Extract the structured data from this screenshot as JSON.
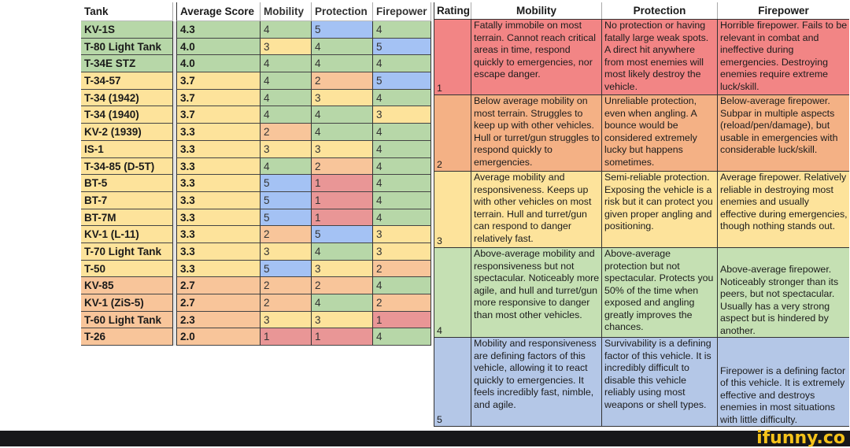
{
  "colors": {
    "rating_1": "#e99696",
    "rating_2": "#f8c59a",
    "rating_3": "#fde39b",
    "rating_4": "#b7d7a8",
    "rating_5": "#a4c2f4",
    "rt_rating_1": "#f28585",
    "rt_rating_2": "#f4b185",
    "rt_rating_3": "#fde39b",
    "rt_rating_4": "#c5e0b3",
    "rt_rating_5": "#b4c7e7"
  },
  "tank_table": {
    "headers": {
      "tank": "Tank",
      "average": "Average Score",
      "mobility": "Mobility",
      "protection": "Protection",
      "firepower": "Firepower"
    },
    "rows": [
      {
        "tank": "KV-1S",
        "average": "4.3",
        "avg_tier": 4,
        "mobility": "4",
        "protection": "5",
        "firepower": "4"
      },
      {
        "tank": "T-80 Light Tank",
        "average": "4.0",
        "avg_tier": 4,
        "mobility": "3",
        "protection": "4",
        "firepower": "5"
      },
      {
        "tank": "T-34E STZ",
        "average": "4.0",
        "avg_tier": 4,
        "mobility": "4",
        "protection": "4",
        "firepower": "4"
      },
      {
        "tank": "T-34-57",
        "average": "3.7",
        "avg_tier": 3,
        "mobility": "4",
        "protection": "2",
        "firepower": "5"
      },
      {
        "tank": "T-34 (1942)",
        "average": "3.7",
        "avg_tier": 3,
        "mobility": "4",
        "protection": "3",
        "firepower": "4"
      },
      {
        "tank": "T-34 (1940)",
        "average": "3.7",
        "avg_tier": 3,
        "mobility": "4",
        "protection": "4",
        "firepower": "3"
      },
      {
        "tank": "KV-2 (1939)",
        "average": "3.3",
        "avg_tier": 3,
        "mobility": "2",
        "protection": "4",
        "firepower": "4"
      },
      {
        "tank": "IS-1",
        "average": "3.3",
        "avg_tier": 3,
        "mobility": "3",
        "protection": "3",
        "firepower": "4"
      },
      {
        "tank": "T-34-85 (D-5T)",
        "average": "3.3",
        "avg_tier": 3,
        "mobility": "4",
        "protection": "2",
        "firepower": "4"
      },
      {
        "tank": "BT-5",
        "average": "3.3",
        "avg_tier": 3,
        "mobility": "5",
        "protection": "1",
        "firepower": "4"
      },
      {
        "tank": "BT-7",
        "average": "3.3",
        "avg_tier": 3,
        "mobility": "5",
        "protection": "1",
        "firepower": "4"
      },
      {
        "tank": "BT-7M",
        "average": "3.3",
        "avg_tier": 3,
        "mobility": "5",
        "protection": "1",
        "firepower": "4"
      },
      {
        "tank": "KV-1 (L-11)",
        "average": "3.3",
        "avg_tier": 3,
        "mobility": "2",
        "protection": "5",
        "firepower": "3"
      },
      {
        "tank": "T-70 Light Tank",
        "average": "3.3",
        "avg_tier": 3,
        "mobility": "3",
        "protection": "4",
        "firepower": "3"
      },
      {
        "tank": "T-50",
        "average": "3.3",
        "avg_tier": 3,
        "mobility": "5",
        "protection": "3",
        "firepower": "2"
      },
      {
        "tank": "KV-85",
        "average": "2.7",
        "avg_tier": 2,
        "mobility": "2",
        "protection": "2",
        "firepower": "4"
      },
      {
        "tank": "KV-1 (ZiS-5)",
        "average": "2.7",
        "avg_tier": 2,
        "mobility": "2",
        "protection": "4",
        "firepower": "2"
      },
      {
        "tank": "T-60 Light Tank",
        "average": "2.3",
        "avg_tier": 2,
        "mobility": "3",
        "protection": "3",
        "firepower": "1"
      },
      {
        "tank": "T-26",
        "average": "2.0",
        "avg_tier": 2,
        "mobility": "1",
        "protection": "1",
        "firepower": "4"
      }
    ]
  },
  "rating_table": {
    "headers": {
      "rating": "Rating",
      "mobility": "Mobility",
      "protection": "Protection",
      "firepower": "Firepower"
    },
    "rows": [
      {
        "rating": "1",
        "mobility": "Fatally immobile on most terrain. Cannot reach critical areas in time, respond quickly to emergencies, nor escape danger.",
        "protection": "No protection or having fatally large weak spots. A direct hit anywhere from most enemies will most likely destroy the vehicle.",
        "firepower": "Horrible firepower. Fails to be relevant in combat and ineffective during emergencies. Destroying enemies require extreme luck/skill."
      },
      {
        "rating": "2",
        "mobility": "Below average mobility on most terrain. Struggles to keep up with other vehicles. Hull or turret/gun struggles to respond quickly to emergencies.",
        "protection": "Unreliable protection, even when angling. A bounce would be considered extremely lucky but happens sometimes.",
        "firepower": "Below-average firepower. Subpar in multiple aspects (reload/pen/damage), but usable in emergencies with considerable luck/skill."
      },
      {
        "rating": "3",
        "mobility": "Average mobility and responsiveness. Keeps up with other vehicles on most terrain. Hull and turret/gun can respond to danger relatively fast.",
        "protection": "Semi-reliable protection. Exposing the vehicle is a risk but it can protect you given proper angling and positioning.",
        "firepower": "Average firepower. Relatively reliable in destroying most enemies and usually effective during emergencies, though nothing stands out."
      },
      {
        "rating": "4",
        "mobility": "Above-average mobility and responsiveness but not spectacular. Noticeably more agile, and hull and turret/gun more responsive to danger than most other vehicles.",
        "protection": "Above-average protection but not spectacular. Protects you 50% of the time when exposed and angling greatly improves the chances.",
        "firepower": "Above-average firepower. Noticeably stronger than its peers, but not spectacular. Usually has a very strong aspect but is hindered by another."
      },
      {
        "rating": "5",
        "mobility": "Mobility and responsiveness are defining factors of this vehicle, allowing it to react quickly to emergencies. It feels incredibly fast, nimble, and agile.",
        "protection": "Survivability is a defining factor of this vehicle. It is incredibly difficult to disable this vehicle reliably using most weapons or shell types.",
        "firepower": "Firepower is a defining factor of this vehicle. It is extremely effective and destroys enemies in most situations with little difficulty."
      }
    ]
  },
  "watermark": {
    "text": "ifunny.co"
  }
}
